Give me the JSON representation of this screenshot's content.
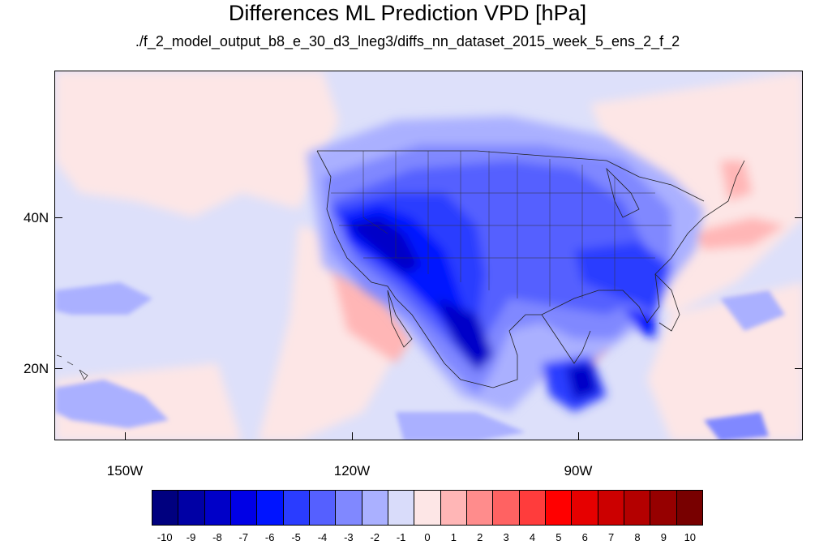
{
  "title": "Differences ML Prediction VPD [hPa]",
  "subtitle": "./f_2_model_output_b8_e_30_d3_lneg3/diffs_nn_dataset_2015_week_5_ens_2_f_2",
  "latitude_labels": [
    "40N",
    "20N"
  ],
  "longitude_labels": [
    "150W",
    "120W",
    "90W"
  ],
  "colorbar": {
    "labels": [
      "-10",
      "-9",
      "-8",
      "-7",
      "-6",
      "-5",
      "-4",
      "-3",
      "-2",
      "-1",
      "0",
      "1",
      "2",
      "3",
      "4",
      "5",
      "6",
      "7",
      "8",
      "9",
      "10"
    ],
    "colors": [
      "#00007f",
      "#0000a5",
      "#0000c8",
      "#0000e6",
      "#0014ff",
      "#2a3cff",
      "#5560ff",
      "#8088ff",
      "#aab0ff",
      "#d9dcfa",
      "#fde6e6",
      "#ffb6b6",
      "#ff8c8c",
      "#ff6262",
      "#ff3c3c",
      "#ff0000",
      "#e60000",
      "#cc0000",
      "#b40000",
      "#960000",
      "#780000"
    ]
  }
}
